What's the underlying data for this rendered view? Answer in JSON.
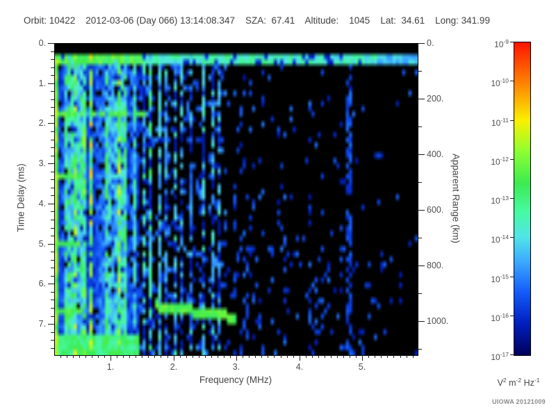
{
  "header": {
    "text": "Orbit: 10422    2012-03-06 (Day 066) 13:14:08.347    SZA:  67.41    Altitude:    1045    Lat:  34.61    Long: 341.99"
  },
  "footer": {
    "credit": "UIOWA 20121009"
  },
  "chart_data": {
    "type": "heatmap",
    "description": "Radar sounder ionogram spectrogram: spectral density vs frequency and time delay",
    "xlabel": "Frequency (MHz)",
    "ylabel": "Time Delay (ms)",
    "y2label": "Apparent Range (km)",
    "x_range": [
      0.105,
      5.87
    ],
    "x_major_values": [
      1,
      2,
      3,
      4,
      5
    ],
    "x_ticks": [
      "1.",
      "2.",
      "3.",
      "4.",
      "5."
    ],
    "x_minor_step": 0.1,
    "y_range": [
      0,
      7.76
    ],
    "y_major_values": [
      0,
      1,
      2,
      3,
      4,
      5,
      6,
      7
    ],
    "y_ticks": [
      "0.",
      "1.",
      "2.",
      "3.",
      "4.",
      "5.",
      "6.",
      "7."
    ],
    "y_minor_step": 0.2,
    "y2_range": [
      0,
      1120
    ],
    "y2_major_values": [
      0,
      200,
      400,
      600,
      800,
      1000
    ],
    "y2_ticks": [
      "0.",
      "200.",
      "400.",
      "600.",
      "800.",
      "1000."
    ],
    "y2_minor_step": 100,
    "grid": "off",
    "colorbar": {
      "position": "right",
      "scale": "log",
      "tick_exponents": [
        -9,
        -10,
        -11,
        -12,
        -13,
        -14,
        -15,
        -16,
        -17
      ],
      "unit_segments": [
        [
          "V",
          "2"
        ],
        [
          "m",
          "-2"
        ],
        [
          "Hz",
          "-1"
        ]
      ],
      "colormap_stops": [
        [
          0.0,
          [
            0,
            0,
            90
          ]
        ],
        [
          0.1,
          [
            0,
            30,
            190
          ]
        ],
        [
          0.2,
          [
            20,
            90,
            250
          ]
        ],
        [
          0.3,
          [
            60,
            170,
            255
          ]
        ],
        [
          0.38,
          [
            80,
            230,
            230
          ]
        ],
        [
          0.46,
          [
            70,
            250,
            160
          ]
        ],
        [
          0.55,
          [
            60,
            235,
            80
          ]
        ],
        [
          0.65,
          [
            140,
            255,
            50
          ]
        ],
        [
          0.75,
          [
            250,
            240,
            0
          ]
        ],
        [
          0.87,
          [
            255,
            130,
            0
          ]
        ],
        [
          1.0,
          [
            255,
            20,
            0
          ]
        ]
      ]
    },
    "features": {
      "seed": 20121009,
      "grid_cells": {
        "nf": 116,
        "nt": 60
      },
      "threshold": 0.07,
      "background": "#000000",
      "top_black_strip_t": 0.25,
      "surface_echo_band": {
        "t": [
          0.25,
          0.52
        ],
        "v_left": 0.48,
        "v_right": 0.34,
        "gap_p": 0.13
      },
      "ionospheric_stripe_region": {
        "f_max": 1.45,
        "bright_col_p": 0.33,
        "mid_col_p": 0.39,
        "gap_p": 0.1
      },
      "mid_stripes": [
        {
          "f": 1.52,
          "amp": 0.45,
          "gap_p": 0.5
        },
        {
          "f": 1.63,
          "amp": 0.52,
          "gap_p": 0.45
        },
        {
          "f": 1.75,
          "amp": 0.42,
          "gap_p": 0.12
        },
        {
          "f": 1.88,
          "amp": 0.4,
          "gap_p": 0.55
        },
        {
          "f": 2.0,
          "amp": 0.45,
          "gap_p": 0.5
        },
        {
          "f": 2.13,
          "amp": 0.38,
          "gap_p": 0.6
        },
        {
          "f": 2.28,
          "amp": 0.36,
          "gap_p": 0.6
        },
        {
          "f": 2.45,
          "amp": 0.42,
          "gap_p": 0.55
        },
        {
          "f": 2.62,
          "amp": 0.4,
          "gap_p": 0.55
        },
        {
          "f": 2.72,
          "amp": 0.38,
          "gap_p": 0.6
        }
      ],
      "cyclotron_echoes": {
        "t": [
          1.7,
          3.35,
          5.02,
          6.7
        ],
        "f_extents": [
          1.58,
          0.5,
          0.52,
          0.72
        ],
        "v": 0.5,
        "t_halfwidth": 0.066
      },
      "oblique_echo": {
        "f": [
          1.68,
          2.98
        ],
        "t": [
          6.52,
          6.82
        ],
        "v": 0.52,
        "t_halfwidth": 0.13
      },
      "scatter_blobs": {
        "p_at_f3": 0.16,
        "p_at_f5p8": 0.02,
        "v_min": 0.09,
        "v_max": 0.24,
        "dense_column_f": 4.78,
        "dense_column_p": 0.5,
        "deep_time_boost_t": 5.0,
        "deep_time_factor": 1.5
      },
      "mid_scatter_p": 0.2,
      "left_edge_column_v": 0.55
    }
  }
}
